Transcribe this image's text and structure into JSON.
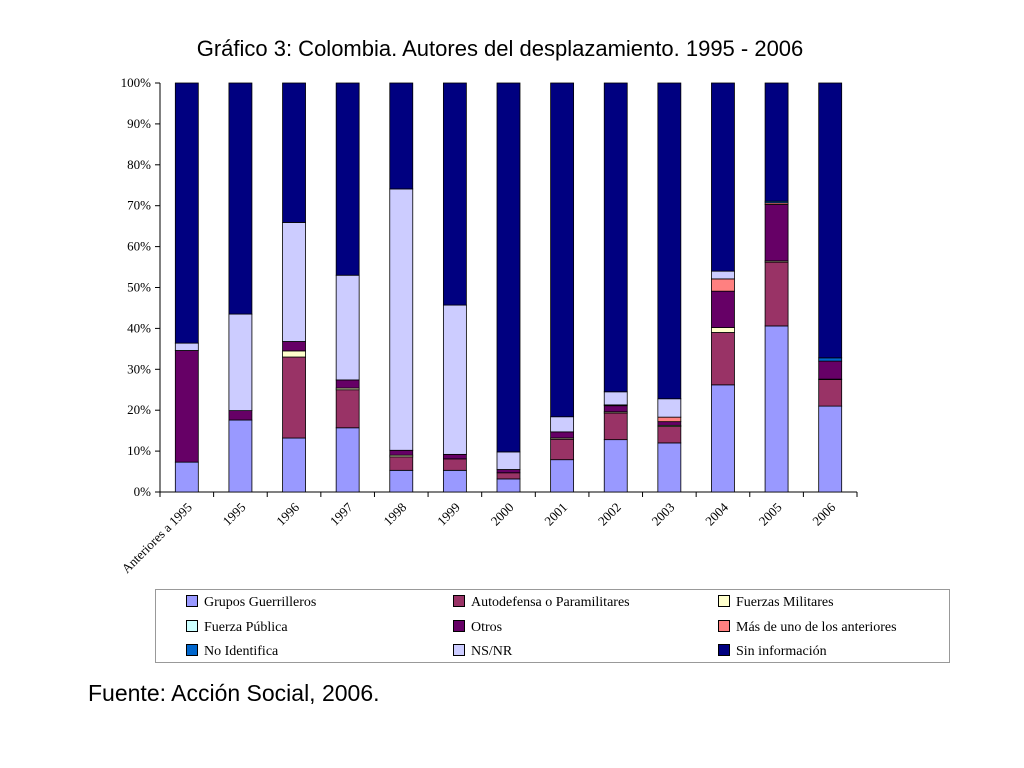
{
  "title": "Gráfico 3: Colombia. Autores del desplazamiento. 1995 - 2006",
  "source": "Fuente: Acción Social, 2006.",
  "chart_data": {
    "type": "bar",
    "stacked": true,
    "percent": true,
    "title": "Gráfico 3: Colombia. Autores del desplazamiento. 1995 - 2006",
    "ylim": [
      0,
      100
    ],
    "yticks": [
      "0%",
      "10%",
      "20%",
      "30%",
      "40%",
      "50%",
      "60%",
      "70%",
      "80%",
      "90%",
      "100%"
    ],
    "grid": false,
    "legend_position": "bottom",
    "categories": [
      "Anteriores a 1995",
      "1995",
      "1996",
      "1997",
      "1998",
      "1999",
      "2000",
      "2001",
      "2002",
      "2003",
      "2004",
      "2005",
      "2006"
    ],
    "series": [
      {
        "name": "Grupos Guerrilleros",
        "color": "#9999FF",
        "values": [
          7.3,
          17.6,
          13.2,
          15.7,
          5.3,
          5.3,
          3.2,
          7.9,
          12.8,
          12.0,
          26.2,
          40.6,
          21.0
        ]
      },
      {
        "name": "Autodefensa o Paramilitares",
        "color": "#993366",
        "values": [
          0.0,
          0.0,
          19.8,
          9.3,
          3.3,
          2.8,
          1.5,
          5.0,
          6.5,
          4.0,
          12.8,
          15.6,
          6.5
        ]
      },
      {
        "name": "Fuerzas Militares",
        "color": "#FFFFCC",
        "values": [
          0.0,
          0.0,
          1.5,
          0.4,
          0.4,
          0.0,
          0.0,
          0.3,
          0.3,
          0.3,
          1.2,
          0.3,
          0.1
        ]
      },
      {
        "name": "Fuerza Pública",
        "color": "#CCFFFF",
        "values": [
          0.0,
          0.0,
          0.0,
          0.0,
          0.0,
          0.0,
          0.0,
          0.0,
          0.0,
          0.0,
          0.0,
          0.0,
          0.0
        ]
      },
      {
        "name": "Otros",
        "color": "#660066",
        "values": [
          27.3,
          2.3,
          2.3,
          2.0,
          1.2,
          1.1,
          0.8,
          1.5,
          1.5,
          0.9,
          8.9,
          13.8,
          4.4
        ]
      },
      {
        "name": "Más de uno de los anteriores",
        "color": "#FF8080",
        "values": [
          0.0,
          0.0,
          0.0,
          0.0,
          0.0,
          0.0,
          0.0,
          0.0,
          0.2,
          1.1,
          3.0,
          0.4,
          0.0
        ]
      },
      {
        "name": "No Identifica",
        "color": "#0066CC",
        "values": [
          0.0,
          0.0,
          0.0,
          0.0,
          0.0,
          0.0,
          0.0,
          0.0,
          0.0,
          0.0,
          0.0,
          0.4,
          0.8
        ]
      },
      {
        "name": "NS/NR",
        "color": "#CCCCFF",
        "values": [
          1.8,
          23.6,
          29.1,
          25.6,
          63.9,
          36.5,
          4.3,
          3.7,
          3.2,
          4.5,
          1.9,
          0.0,
          0.0
        ]
      },
      {
        "name": "Sin información",
        "color": "#000080",
        "values": [
          63.6,
          56.5,
          34.1,
          47.0,
          25.9,
          54.3,
          90.2,
          81.6,
          75.5,
          77.2,
          46.0,
          28.9,
          67.2
        ]
      }
    ]
  }
}
